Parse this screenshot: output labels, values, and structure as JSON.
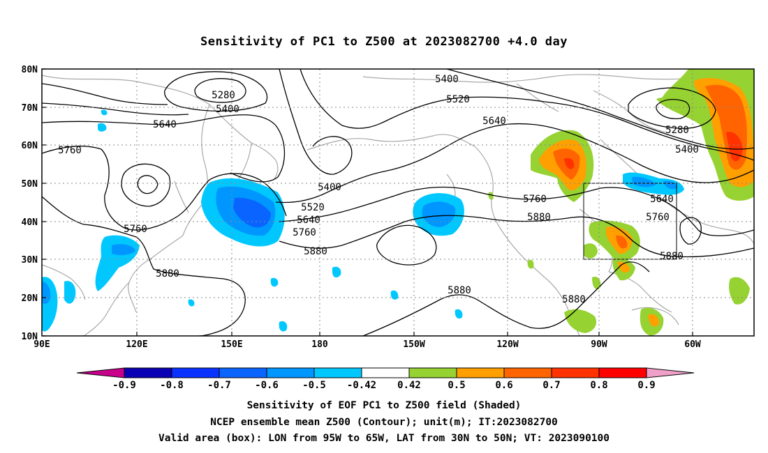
{
  "title": "Sensitivity of PC1 to Z500 at 2023082700 +4.0 day",
  "lat_labels": [
    "80N",
    "70N",
    "60N",
    "50N",
    "40N",
    "30N",
    "20N",
    "10N"
  ],
  "lon_labels": [
    "90E",
    "120E",
    "150E",
    "180",
    "150W",
    "120W",
    "90W",
    "60W"
  ],
  "contour_labels": [
    {
      "text": "5280",
      "id": "c5280-a"
    },
    {
      "text": "5400",
      "id": "c5400-a"
    },
    {
      "text": "5640",
      "id": "c5640-a"
    },
    {
      "text": "5760",
      "id": "c5760-a"
    },
    {
      "text": "5400",
      "id": "c5400-b"
    },
    {
      "text": "5520",
      "id": "c5520-a"
    },
    {
      "text": "5640",
      "id": "c5640-b"
    },
    {
      "text": "5760",
      "id": "c5760-b"
    },
    {
      "text": "5880",
      "id": "c5880-a"
    },
    {
      "text": "5760",
      "id": "c5760-c"
    },
    {
      "text": "5880",
      "id": "c5880-b"
    },
    {
      "text": "5400",
      "id": "c5400-c"
    },
    {
      "text": "5520",
      "id": "c5520-b"
    },
    {
      "text": "5640",
      "id": "c5640-c"
    },
    {
      "text": "5760",
      "id": "c5760-d"
    },
    {
      "text": "5880",
      "id": "c5880-c"
    },
    {
      "text": "5880",
      "id": "c5880-d"
    },
    {
      "text": "5880",
      "id": "c5880-e"
    },
    {
      "text": "5280",
      "id": "c5280-b"
    },
    {
      "text": "5400",
      "id": "c5400-d"
    },
    {
      "text": "5640",
      "id": "c5640-d"
    },
    {
      "text": "5760",
      "id": "c5760-e"
    },
    {
      "text": "5880",
      "id": "c5880-f"
    }
  ],
  "colorbar": {
    "labels": [
      "-0.9",
      "-0.8",
      "-0.7",
      "-0.6",
      "-0.5",
      "-0.42",
      "0.42",
      "0.5",
      "0.6",
      "0.7",
      "0.8",
      "0.9"
    ],
    "colors": [
      "#0a00b4",
      "#0a32ff",
      "#0a64ff",
      "#0096ff",
      "#00c8ff",
      "#ffffff",
      "#96d232",
      "#ffa000",
      "#ff6400",
      "#ff3200",
      "#ff0000"
    ],
    "under_color": "#c8008c",
    "over_color": "#f0a0c8"
  },
  "captions": [
    "Sensitivity of EOF PC1 to Z500 field (Shaded)",
    "NCEP ensemble mean Z500 (Contour); unit(m); IT:2023082700",
    "Valid area (box): LON from 95W to 65W, LAT from 30N to 50N; VT: 2023090100"
  ]
}
